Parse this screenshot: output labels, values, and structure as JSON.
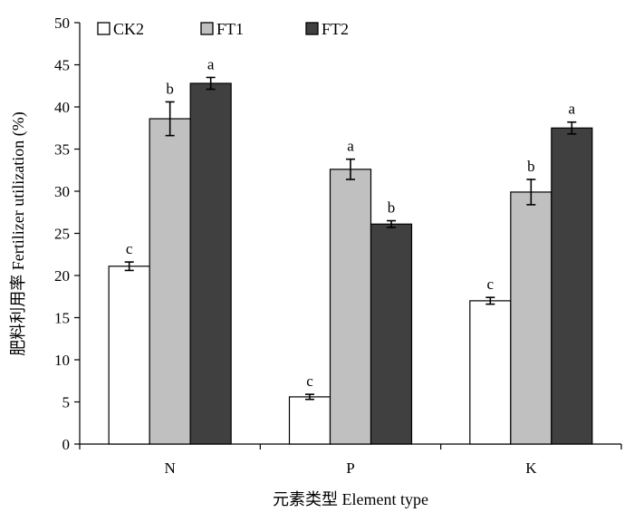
{
  "chart_data": {
    "type": "bar",
    "title": "",
    "xlabel": "元素类型 Element type",
    "ylabel": "肥料利用率 Fertilizer utilization (%)",
    "ylim": [
      0,
      50
    ],
    "yticks": [
      0,
      5,
      10,
      15,
      20,
      25,
      30,
      35,
      40,
      45,
      50
    ],
    "categories": [
      "N",
      "P",
      "K"
    ],
    "grid": false,
    "legend_position": "top-left",
    "series": [
      {
        "name": "CK2",
        "color": "#ffffff",
        "values": [
          21.1,
          5.6,
          17.0
        ],
        "errors": [
          0.5,
          0.3,
          0.4
        ],
        "letters": [
          "c",
          "c",
          "c"
        ]
      },
      {
        "name": "FT1",
        "color": "#c0c0c0",
        "values": [
          38.6,
          32.6,
          29.9
        ],
        "errors": [
          2.0,
          1.2,
          1.5
        ],
        "letters": [
          "b",
          "a",
          "b"
        ]
      },
      {
        "name": "FT2",
        "color": "#404040",
        "values": [
          42.8,
          26.1,
          37.5
        ],
        "errors": [
          0.7,
          0.4,
          0.7
        ],
        "letters": [
          "a",
          "b",
          "a"
        ]
      }
    ]
  }
}
